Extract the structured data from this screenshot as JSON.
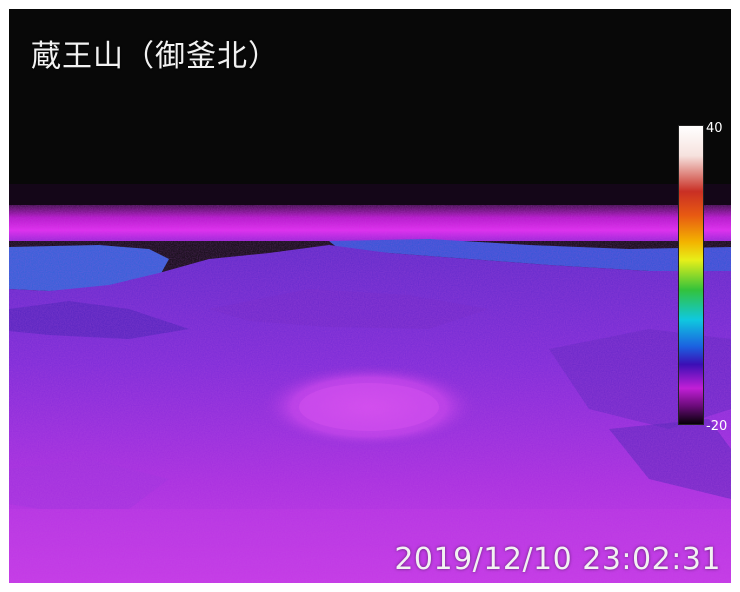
{
  "camera": {
    "title": "蔵王山（御釜北）"
  },
  "colorbar": {
    "max_label": "40",
    "min_label": "-20",
    "scale": [
      "#ffffff",
      "#c92f24",
      "#f3b400",
      "#e7ef19",
      "#33c23b",
      "#0fc8df",
      "#1b61e0",
      "#c11fd6",
      "#070008"
    ]
  },
  "timestamp": "2019/12/10 23:02:31",
  "colors": {
    "sky": "#080808",
    "horizon": "#d21ee0",
    "cold_band": "#2a4bd8",
    "terrain": "#8a2be2"
  }
}
